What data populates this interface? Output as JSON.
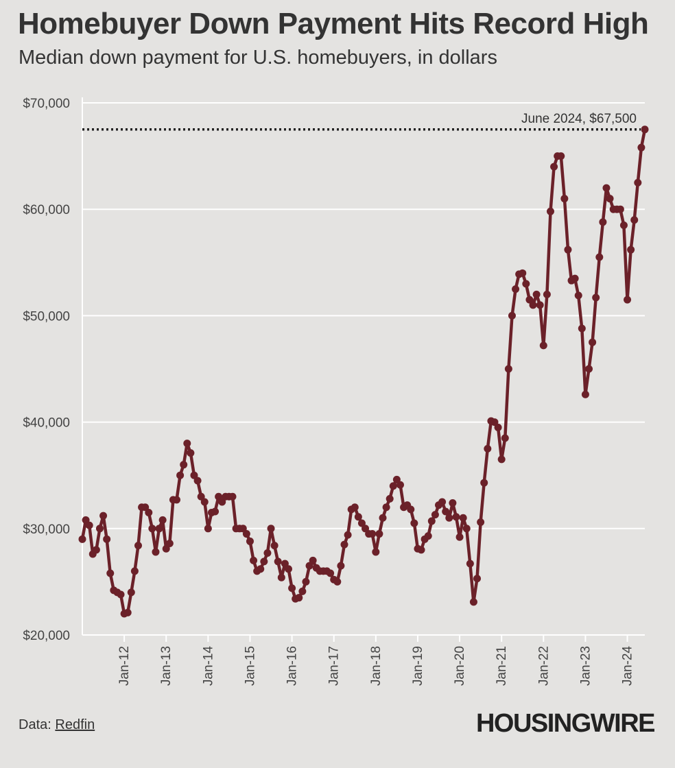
{
  "title": "Homebuyer Down Payment Hits Record High",
  "subtitle": "Median down payment for U.S. homebuyers, in dollars",
  "source": {
    "label": "Data:",
    "link": "Redfin"
  },
  "logo": "HOUSINGWIRE",
  "colors": {
    "background": "#e4e3e1",
    "line": "#6b2129",
    "grid": "#ffffff",
    "text": "#333333"
  },
  "chart_data": {
    "type": "line",
    "title": "Homebuyer Down Payment Hits Record High",
    "subtitle": "Median down payment for U.S. homebuyers, in dollars",
    "xlabel": "",
    "ylabel": "",
    "ylim": [
      20000,
      70000
    ],
    "xlim": [
      "2011-01",
      "2024-06"
    ],
    "yticks": [
      20000,
      30000,
      40000,
      50000,
      60000,
      70000
    ],
    "ytick_labels": [
      "$20,000",
      "$30,000",
      "$40,000",
      "$50,000",
      "$60,000",
      "$70,000"
    ],
    "xticks": [
      "2012-01",
      "2013-01",
      "2014-01",
      "2015-01",
      "2016-01",
      "2017-01",
      "2018-01",
      "2019-01",
      "2020-01",
      "2021-01",
      "2022-01",
      "2023-01",
      "2024-01"
    ],
    "xtick_labels": [
      "Jan-12",
      "Jan-13",
      "Jan-14",
      "Jan-15",
      "Jan-16",
      "Jan-17",
      "Jan-18",
      "Jan-19",
      "Jan-20",
      "Jan-21",
      "Jan-22",
      "Jan-23",
      "Jan-24"
    ],
    "grid": true,
    "annotation": {
      "label": "June 2024, $67,500",
      "value": 67500,
      "style": "dotted reference line"
    },
    "series": [
      {
        "start": "2011-01",
        "frequency": "monthly",
        "values": [
          29000,
          30800,
          30300,
          27600,
          28000,
          30000,
          31200,
          29000,
          25800,
          24200,
          24000,
          23800,
          22000,
          22100,
          24000,
          26000,
          28400,
          32000,
          32000,
          31500,
          30000,
          27800,
          30000,
          30800,
          28100,
          28600,
          32700,
          32700,
          35000,
          36000,
          38000,
          37100,
          35000,
          34500,
          33000,
          32500,
          30000,
          31500,
          31600,
          33000,
          32500,
          33000,
          33000,
          33000,
          30000,
          30000,
          30000,
          29500,
          28800,
          27000,
          26000,
          26200,
          26900,
          27700,
          30000,
          28400,
          26900,
          25400,
          26700,
          26200,
          24400,
          23400,
          23500,
          24100,
          25000,
          26500,
          27000,
          26300,
          26000,
          26000,
          26000,
          25800,
          25200,
          25000,
          26500,
          28500,
          29400,
          31800,
          32000,
          31100,
          30500,
          30000,
          29500,
          29500,
          27800,
          29500,
          31000,
          32000,
          32800,
          34000,
          34600,
          34100,
          32000,
          32200,
          31800,
          30500,
          28100,
          28000,
          29000,
          29300,
          30700,
          31300,
          32200,
          32500,
          31600,
          31000,
          32400,
          31100,
          29200,
          31000,
          30000,
          26700,
          23100,
          25300,
          30600,
          34300,
          37500,
          40100,
          40000,
          39500,
          36500,
          38500,
          45000,
          50000,
          52500,
          53900,
          54000,
          53000,
          51500,
          51000,
          52000,
          51000,
          47200,
          52000,
          59800,
          64000,
          65000,
          65000,
          61000,
          56200,
          53300,
          53500,
          51900,
          48800,
          42600,
          45000,
          47500,
          51700,
          55500,
          58800,
          62000,
          61000,
          60000,
          60000,
          60000,
          58500,
          51500,
          56200,
          59000,
          62500,
          65800,
          67500
        ]
      }
    ]
  }
}
